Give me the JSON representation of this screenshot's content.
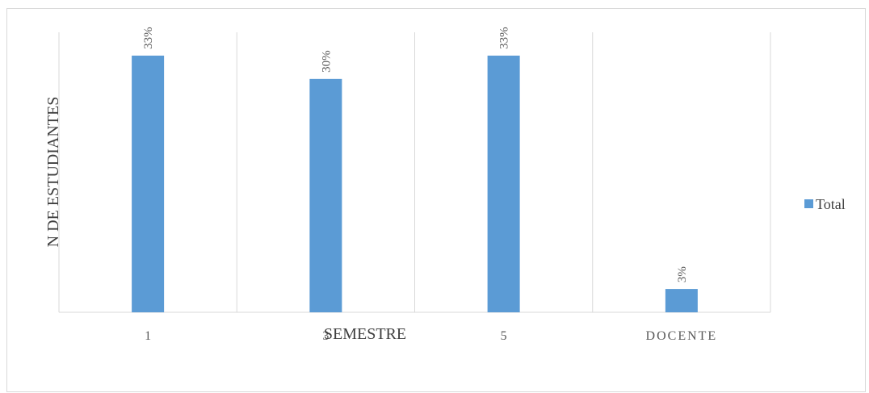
{
  "chart_data": {
    "type": "bar",
    "categories": [
      "1",
      "3",
      "5",
      "DOCENTE"
    ],
    "series": [
      {
        "name": "Total",
        "values": [
          33,
          30,
          33,
          3
        ],
        "labels": [
          "33%",
          "30%",
          "33%",
          "3%"
        ]
      }
    ],
    "xlabel": "SEMESTRE",
    "ylabel": "N DE ESTUDIANTES",
    "ylim": [
      0,
      36
    ],
    "grid": "vertical",
    "legend_position": "right",
    "colors": {
      "bar": "#5b9bd5",
      "grid": "#d9d9d9",
      "axis": "#d9d9d9"
    }
  }
}
